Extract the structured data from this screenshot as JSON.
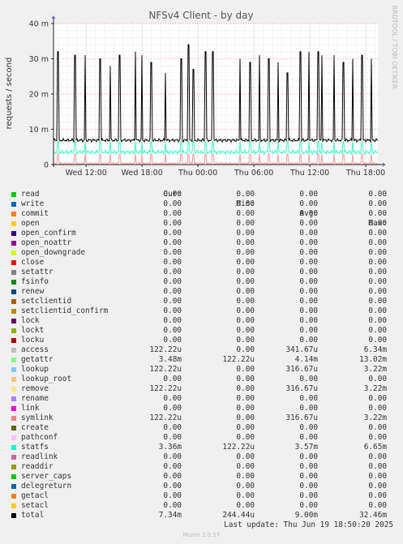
{
  "chart_data": {
    "type": "line",
    "title": "NFSv4 Client - by day",
    "ylabel": "requests / second",
    "side_label": "RRDTOOL / TOBI OETIKER",
    "ylim": [
      0,
      40
    ],
    "yticks": [
      "0",
      "10 m",
      "20 m",
      "30 m",
      "40 m"
    ],
    "ytick_values": [
      0,
      10,
      20,
      30,
      40
    ],
    "xticks": [
      "Wed 12:00",
      "Wed 18:00",
      "Thu 00:00",
      "Thu 06:00",
      "Thu 12:00",
      "Thu 18:00"
    ],
    "xtick_hours": [
      12,
      18,
      24,
      30,
      36,
      42
    ],
    "x_range_hours": [
      8.5,
      43.3
    ],
    "spike_hours": [
      9.0,
      10.8,
      11.9,
      13.5,
      14.6,
      15.6,
      17.3,
      18.0,
      19.0,
      20.5,
      22.2,
      23.0,
      23.5,
      24.8,
      25.6,
      28.5,
      29.6,
      30.6,
      31.6,
      32.6,
      33.6,
      35.0,
      35.9,
      36.9,
      37.3,
      38.6,
      39.6,
      40.6,
      41.6,
      42.6
    ],
    "spike_values_mpersec": [
      32,
      31,
      31,
      30,
      28,
      31,
      32,
      31,
      29,
      26,
      30,
      34,
      27,
      32,
      32,
      30,
      29,
      31,
      30,
      29,
      26,
      32,
      32,
      32,
      31,
      31,
      29,
      30,
      31,
      30
    ],
    "series": [
      {
        "name": "total",
        "baseline_mpersec": 6.9,
        "color": "#000000"
      },
      {
        "name": "statfs",
        "baseline_mpersec": 3.5,
        "color": "#33ffcc"
      },
      {
        "name": "remove",
        "baseline_mpersec": 0.3,
        "color": "#ff9999"
      }
    ]
  },
  "legend": {
    "headers": {
      "cur": "Cur:",
      "min": "Min:",
      "avg": "Avg:",
      "max": "Max:"
    },
    "rows": [
      {
        "name": "read",
        "color": "#00cc00",
        "cur": "0.00",
        "min": "0.00",
        "avg": "0.00",
        "max": "0.00"
      },
      {
        "name": "write",
        "color": "#0066b3",
        "cur": "0.00",
        "min": "0.00",
        "avg": "0.00",
        "max": "0.00"
      },
      {
        "name": "commit",
        "color": "#ff8000",
        "cur": "0.00",
        "min": "0.00",
        "avg": "0.00",
        "max": "0.00"
      },
      {
        "name": "open",
        "color": "#ffcc00",
        "cur": "0.00",
        "min": "0.00",
        "avg": "0.00",
        "max": "0.00"
      },
      {
        "name": "open_confirm",
        "color": "#330099",
        "cur": "0.00",
        "min": "0.00",
        "avg": "0.00",
        "max": "0.00"
      },
      {
        "name": "open_noattr",
        "color": "#990099",
        "cur": "0.00",
        "min": "0.00",
        "avg": "0.00",
        "max": "0.00"
      },
      {
        "name": "open_downgrade",
        "color": "#ccff00",
        "cur": "0.00",
        "min": "0.00",
        "avg": "0.00",
        "max": "0.00"
      },
      {
        "name": "close",
        "color": "#ff0000",
        "cur": "0.00",
        "min": "0.00",
        "avg": "0.00",
        "max": "0.00"
      },
      {
        "name": "setattr",
        "color": "#808080",
        "cur": "0.00",
        "min": "0.00",
        "avg": "0.00",
        "max": "0.00"
      },
      {
        "name": "fsinfo",
        "color": "#008f00",
        "cur": "0.00",
        "min": "0.00",
        "avg": "0.00",
        "max": "0.00"
      },
      {
        "name": "renew",
        "color": "#00487d",
        "cur": "0.00",
        "min": "0.00",
        "avg": "0.00",
        "max": "0.00"
      },
      {
        "name": "setclientid",
        "color": "#b35a00",
        "cur": "0.00",
        "min": "0.00",
        "avg": "0.00",
        "max": "0.00"
      },
      {
        "name": "setclientid_confirm",
        "color": "#b38f00",
        "cur": "0.00",
        "min": "0.00",
        "avg": "0.00",
        "max": "0.00"
      },
      {
        "name": "lock",
        "color": "#6b006b",
        "cur": "0.00",
        "min": "0.00",
        "avg": "0.00",
        "max": "0.00"
      },
      {
        "name": "lockt",
        "color": "#8fb300",
        "cur": "0.00",
        "min": "0.00",
        "avg": "0.00",
        "max": "0.00"
      },
      {
        "name": "locku",
        "color": "#b30000",
        "cur": "0.00",
        "min": "0.00",
        "avg": "0.00",
        "max": "0.00"
      },
      {
        "name": "access",
        "color": "#bebebe",
        "cur": "122.22u",
        "min": "0.00",
        "avg": "341.67u",
        "max": "6.34m"
      },
      {
        "name": "getattr",
        "color": "#80ff80",
        "cur": "3.48m",
        "min": "122.22u",
        "avg": "4.14m",
        "max": "13.02m"
      },
      {
        "name": "lookup",
        "color": "#80c9ff",
        "cur": "122.22u",
        "min": "0.00",
        "avg": "316.67u",
        "max": "3.22m"
      },
      {
        "name": "lookup_root",
        "color": "#ffc080",
        "cur": "0.00",
        "min": "0.00",
        "avg": "0.00",
        "max": "0.00"
      },
      {
        "name": "remove",
        "color": "#ffe680",
        "cur": "122.22u",
        "min": "0.00",
        "avg": "316.67u",
        "max": "3.22m"
      },
      {
        "name": "rename",
        "color": "#aa80ff",
        "cur": "0.00",
        "min": "0.00",
        "avg": "0.00",
        "max": "0.00"
      },
      {
        "name": "link",
        "color": "#ee00cc",
        "cur": "0.00",
        "min": "0.00",
        "avg": "0.00",
        "max": "0.00"
      },
      {
        "name": "symlink",
        "color": "#ff8080",
        "cur": "122.22u",
        "min": "0.00",
        "avg": "316.67u",
        "max": "3.22m"
      },
      {
        "name": "create",
        "color": "#666600",
        "cur": "0.00",
        "min": "0.00",
        "avg": "0.00",
        "max": "0.00"
      },
      {
        "name": "pathconf",
        "color": "#ffbfff",
        "cur": "0.00",
        "min": "0.00",
        "avg": "0.00",
        "max": "0.00"
      },
      {
        "name": "statfs",
        "color": "#00ffcc",
        "cur": "3.36m",
        "min": "122.22u",
        "avg": "3.57m",
        "max": "6.65m"
      },
      {
        "name": "readlink",
        "color": "#cc6699",
        "cur": "0.00",
        "min": "0.00",
        "avg": "0.00",
        "max": "0.00"
      },
      {
        "name": "readdir",
        "color": "#999900",
        "cur": "0.00",
        "min": "0.00",
        "avg": "0.00",
        "max": "0.00"
      },
      {
        "name": "server_caps",
        "color": "#00cc00",
        "cur": "0.00",
        "min": "0.00",
        "avg": "0.00",
        "max": "0.00"
      },
      {
        "name": "delegreturn",
        "color": "#0066b3",
        "cur": "0.00",
        "min": "0.00",
        "avg": "0.00",
        "max": "0.00"
      },
      {
        "name": "getacl",
        "color": "#ff8000",
        "cur": "0.00",
        "min": "0.00",
        "avg": "0.00",
        "max": "0.00"
      },
      {
        "name": "setacl",
        "color": "#ffcc00",
        "cur": "0.00",
        "min": "0.00",
        "avg": "0.00",
        "max": "0.00"
      },
      {
        "name": "total",
        "color": "#000000",
        "cur": "7.34m",
        "min": "244.44u",
        "avg": "9.00m",
        "max": "32.46m"
      }
    ]
  },
  "last_update": "Last update: Thu Jun 19 18:50:20 2025",
  "footer": "Munin 2.0.57"
}
